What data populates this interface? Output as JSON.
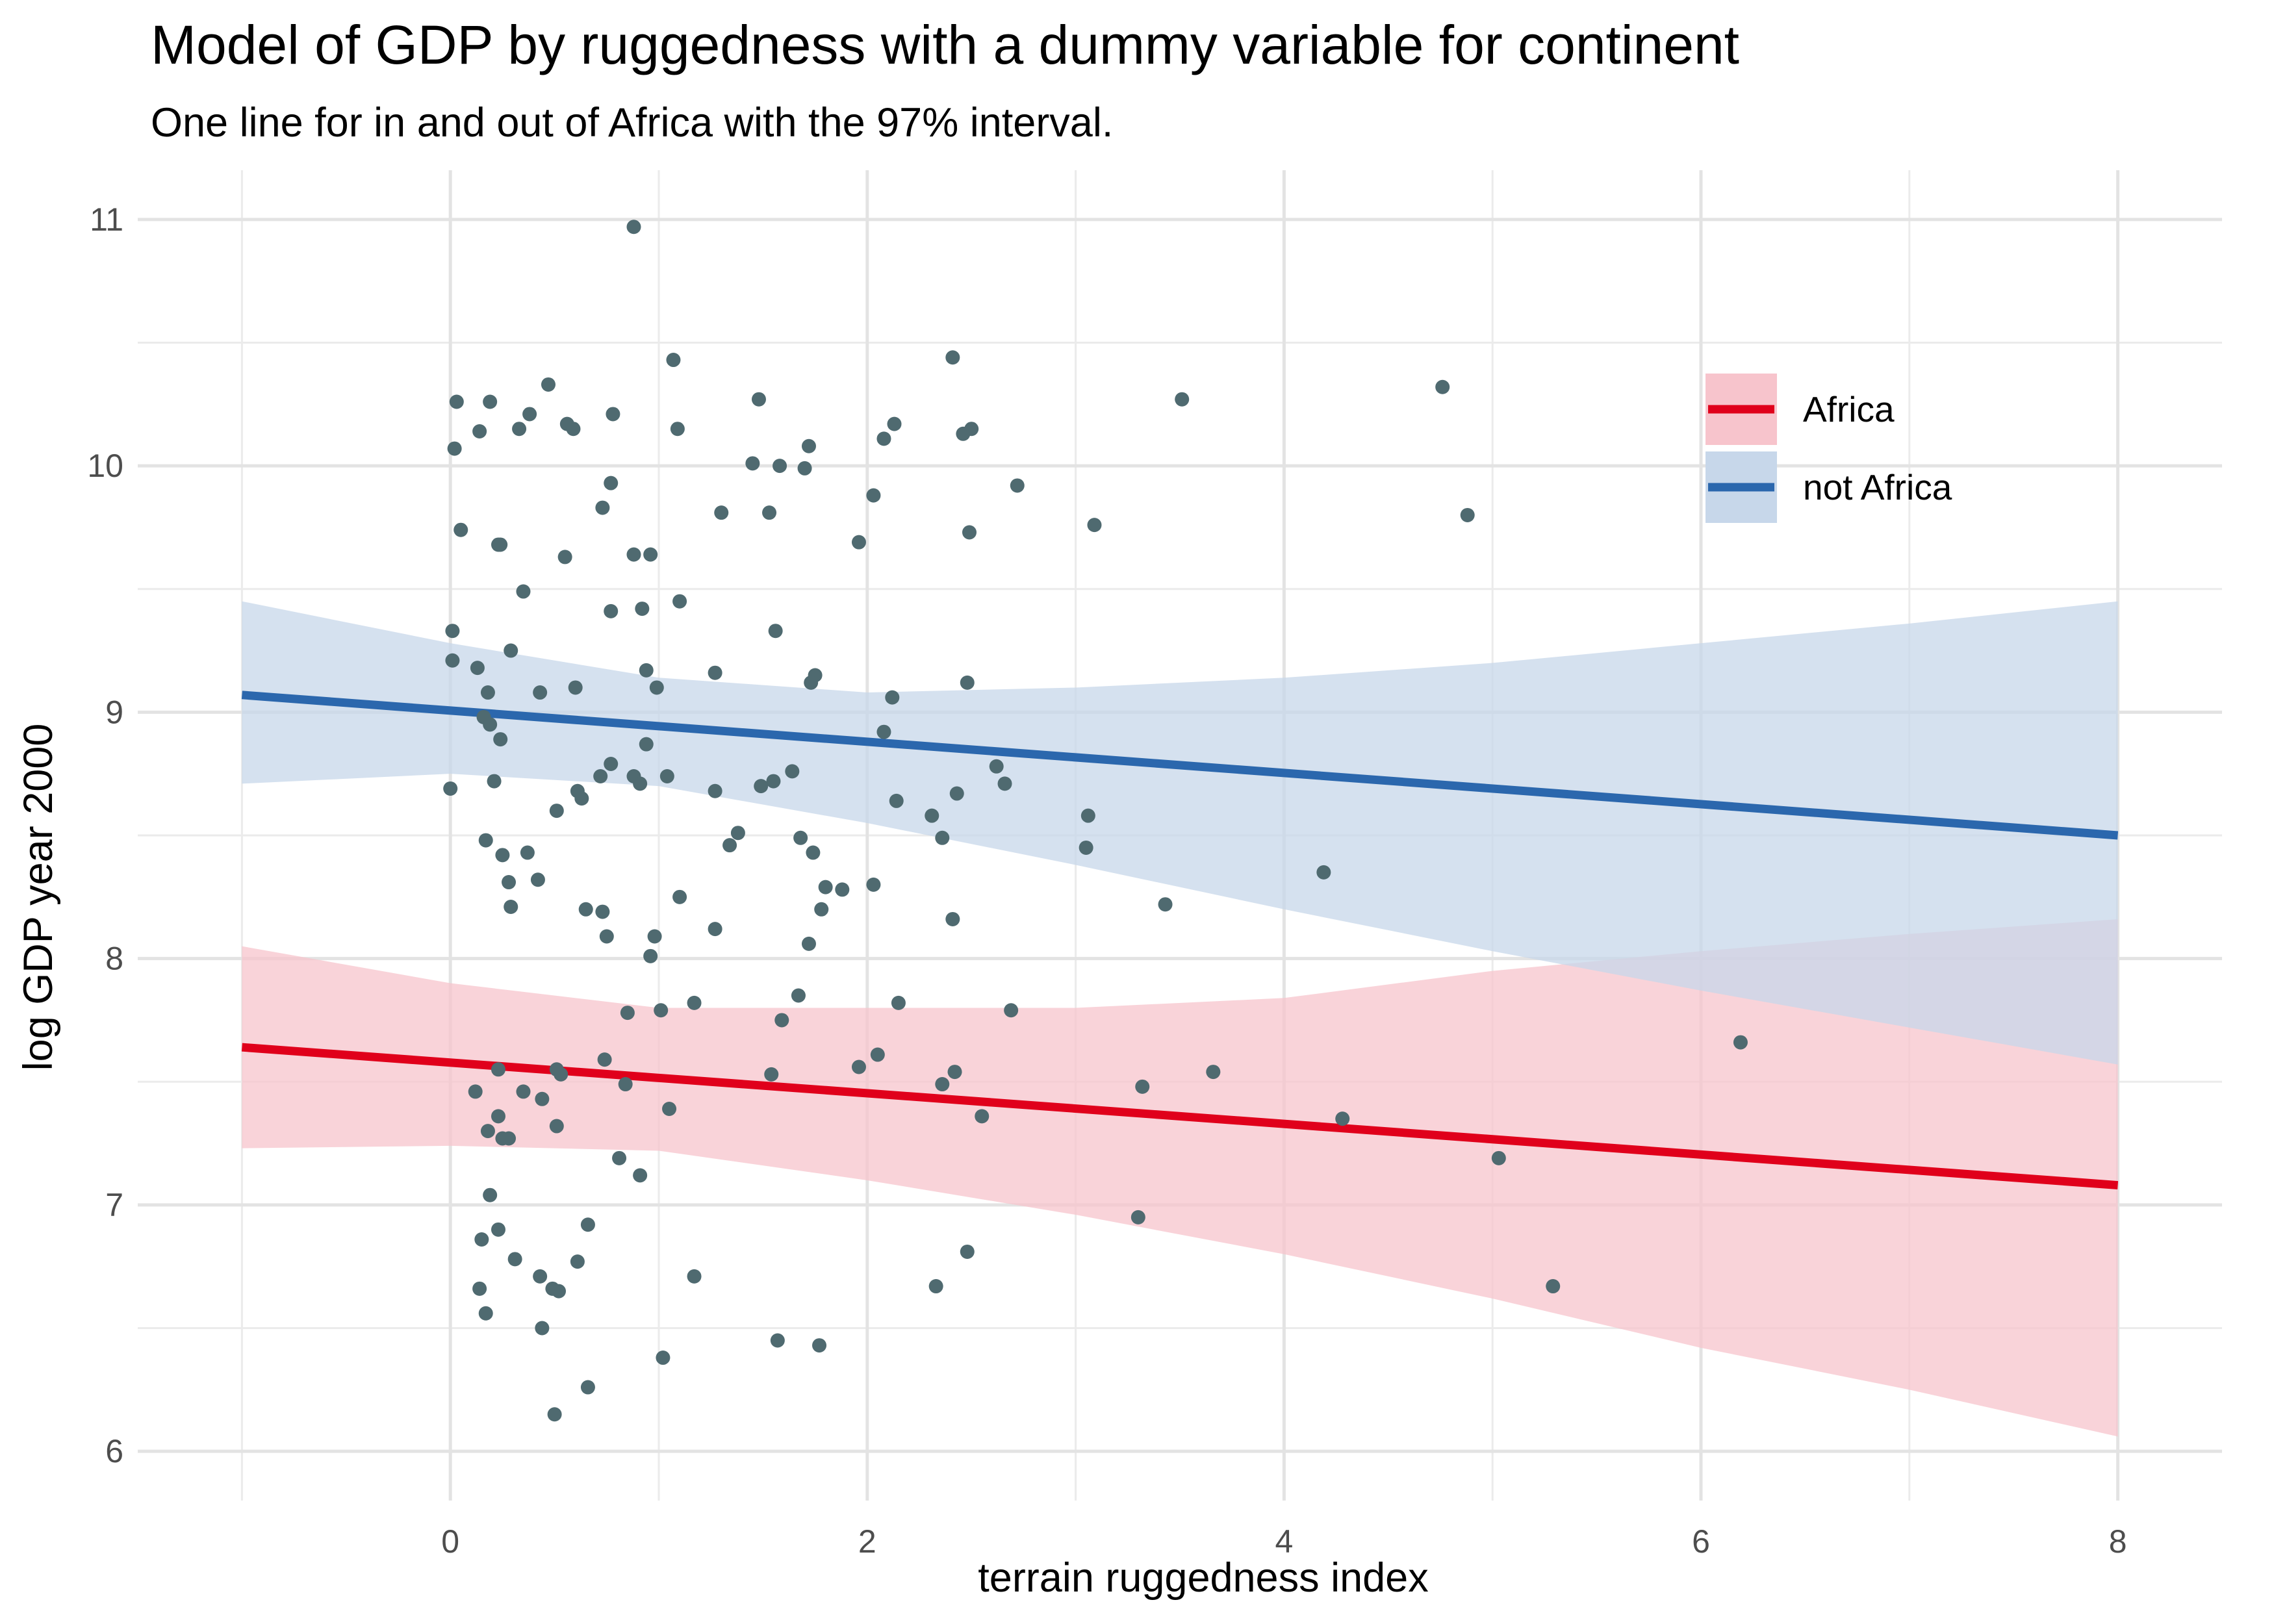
{
  "chart_data": {
    "type": "scatter",
    "title": "Model of GDP by ruggedness with a dummy variable for continent",
    "subtitle": "One line for in and out of Africa with the 97% interval.",
    "xlabel": "terrain ruggedness index",
    "ylabel": "log GDP year 2000",
    "xlim": [
      -1.5,
      8.5
    ],
    "ylim": [
      5.8,
      11.2
    ],
    "x_ticks": [
      0,
      2,
      4,
      6,
      8
    ],
    "y_ticks": [
      6,
      7,
      8,
      9,
      10,
      11
    ],
    "grid": true,
    "legend_position": "top-right",
    "point_color": "#4f6a70",
    "series": [
      {
        "name": "Africa",
        "color": "#e0001b",
        "fill": "#f7c4cc",
        "line": [
          [
            -1.0,
            7.64
          ],
          [
            8.0,
            7.08
          ]
        ],
        "interval_upper": [
          [
            -1.0,
            8.05
          ],
          [
            0.0,
            7.9
          ],
          [
            1.0,
            7.8
          ],
          [
            2.0,
            7.8
          ],
          [
            3.0,
            7.8
          ],
          [
            4.0,
            7.84
          ],
          [
            5.0,
            7.95
          ],
          [
            6.0,
            8.03
          ],
          [
            7.0,
            8.1
          ],
          [
            8.0,
            8.16
          ]
        ],
        "interval_lower": [
          [
            -1.0,
            7.23
          ],
          [
            0.0,
            7.24
          ],
          [
            1.0,
            7.22
          ],
          [
            2.0,
            7.1
          ],
          [
            3.0,
            6.96
          ],
          [
            4.0,
            6.8
          ],
          [
            5.0,
            6.62
          ],
          [
            6.0,
            6.42
          ],
          [
            7.0,
            6.25
          ],
          [
            8.0,
            6.06
          ]
        ]
      },
      {
        "name": "not Africa",
        "color": "#2b67ad",
        "fill": "#c7d7ea",
        "line": [
          [
            -1.0,
            9.07
          ],
          [
            8.0,
            8.5
          ]
        ],
        "interval_upper": [
          [
            -1.0,
            9.45
          ],
          [
            0.0,
            9.28
          ],
          [
            1.0,
            9.14
          ],
          [
            2.0,
            9.08
          ],
          [
            3.0,
            9.1
          ],
          [
            4.0,
            9.14
          ],
          [
            5.0,
            9.2
          ],
          [
            6.0,
            9.28
          ],
          [
            7.0,
            9.36
          ],
          [
            8.0,
            9.45
          ]
        ],
        "interval_lower": [
          [
            -1.0,
            8.71
          ],
          [
            0.0,
            8.75
          ],
          [
            1.0,
            8.7
          ],
          [
            2.0,
            8.55
          ],
          [
            3.0,
            8.38
          ],
          [
            4.0,
            8.2
          ],
          [
            5.0,
            8.03
          ],
          [
            6.0,
            7.87
          ],
          [
            7.0,
            7.72
          ],
          [
            8.0,
            7.57
          ]
        ]
      }
    ],
    "points": [
      [
        0.88,
        10.97
      ],
      [
        1.07,
        10.43
      ],
      [
        2.41,
        10.44
      ],
      [
        0.47,
        10.33
      ],
      [
        0.03,
        10.26
      ],
      [
        0.19,
        10.26
      ],
      [
        1.48,
        10.27
      ],
      [
        3.51,
        10.27
      ],
      [
        4.76,
        10.32
      ],
      [
        0.38,
        10.21
      ],
      [
        0.78,
        10.21
      ],
      [
        0.56,
        10.17
      ],
      [
        0.59,
        10.15
      ],
      [
        0.33,
        10.15
      ],
      [
        0.14,
        10.14
      ],
      [
        1.09,
        10.15
      ],
      [
        2.13,
        10.17
      ],
      [
        2.5,
        10.15
      ],
      [
        2.46,
        10.13
      ],
      [
        2.08,
        10.11
      ],
      [
        1.72,
        10.08
      ],
      [
        0.02,
        10.07
      ],
      [
        1.45,
        10.01
      ],
      [
        1.58,
        10.0
      ],
      [
        1.7,
        9.99
      ],
      [
        0.77,
        9.93
      ],
      [
        2.72,
        9.92
      ],
      [
        2.03,
        9.88
      ],
      [
        0.73,
        9.83
      ],
      [
        1.3,
        9.81
      ],
      [
        1.53,
        9.81
      ],
      [
        4.88,
        9.8
      ],
      [
        0.05,
        9.74
      ],
      [
        2.49,
        9.73
      ],
      [
        3.09,
        9.76
      ],
      [
        0.23,
        9.68
      ],
      [
        0.24,
        9.68
      ],
      [
        1.96,
        9.69
      ],
      [
        0.55,
        9.63
      ],
      [
        0.88,
        9.64
      ],
      [
        0.96,
        9.64
      ],
      [
        0.35,
        9.49
      ],
      [
        0.77,
        9.41
      ],
      [
        0.92,
        9.42
      ],
      [
        1.1,
        9.45
      ],
      [
        0.01,
        9.33
      ],
      [
        1.56,
        9.33
      ],
      [
        0.29,
        9.25
      ],
      [
        0.01,
        9.21
      ],
      [
        0.13,
        9.18
      ],
      [
        0.94,
        9.17
      ],
      [
        1.27,
        9.16
      ],
      [
        1.75,
        9.15
      ],
      [
        1.73,
        9.12
      ],
      [
        2.48,
        9.12
      ],
      [
        0.6,
        9.1
      ],
      [
        0.99,
        9.1
      ],
      [
        0.18,
        9.08
      ],
      [
        0.43,
        9.08
      ],
      [
        2.12,
        9.06
      ],
      [
        0.16,
        8.98
      ],
      [
        0.19,
        8.95
      ],
      [
        2.08,
        8.92
      ],
      [
        0.24,
        8.89
      ],
      [
        0.94,
        8.87
      ],
      [
        0.77,
        8.79
      ],
      [
        1.64,
        8.76
      ],
      [
        2.62,
        8.78
      ],
      [
        0.88,
        8.74
      ],
      [
        0.72,
        8.74
      ],
      [
        1.04,
        8.74
      ],
      [
        0.21,
        8.72
      ],
      [
        1.55,
        8.72
      ],
      [
        0.91,
        8.71
      ],
      [
        2.66,
        8.71
      ],
      [
        1.49,
        8.7
      ],
      [
        0.0,
        8.69
      ],
      [
        1.27,
        8.68
      ],
      [
        0.61,
        8.68
      ],
      [
        0.63,
        8.65
      ],
      [
        2.43,
        8.67
      ],
      [
        2.14,
        8.64
      ],
      [
        0.51,
        8.6
      ],
      [
        2.31,
        8.58
      ],
      [
        3.06,
        8.58
      ],
      [
        1.38,
        8.51
      ],
      [
        0.17,
        8.48
      ],
      [
        1.68,
        8.49
      ],
      [
        2.36,
        8.49
      ],
      [
        1.34,
        8.46
      ],
      [
        3.05,
        8.45
      ],
      [
        0.25,
        8.42
      ],
      [
        0.37,
        8.43
      ],
      [
        1.74,
        8.43
      ],
      [
        4.19,
        8.35
      ],
      [
        0.28,
        8.31
      ],
      [
        0.42,
        8.32
      ],
      [
        1.8,
        8.29
      ],
      [
        1.88,
        8.28
      ],
      [
        2.03,
        8.3
      ],
      [
        1.1,
        8.25
      ],
      [
        0.29,
        8.21
      ],
      [
        0.65,
        8.2
      ],
      [
        0.73,
        8.19
      ],
      [
        1.78,
        8.2
      ],
      [
        3.43,
        8.22
      ],
      [
        2.41,
        8.16
      ],
      [
        1.27,
        8.12
      ],
      [
        0.98,
        8.09
      ],
      [
        0.75,
        8.09
      ],
      [
        1.72,
        8.06
      ],
      [
        0.96,
        8.01
      ],
      [
        1.67,
        7.85
      ],
      [
        1.17,
        7.82
      ],
      [
        2.15,
        7.82
      ],
      [
        0.85,
        7.78
      ],
      [
        1.01,
        7.79
      ],
      [
        2.69,
        7.79
      ],
      [
        1.59,
        7.75
      ],
      [
        6.19,
        7.66
      ],
      [
        2.05,
        7.61
      ],
      [
        0.74,
        7.59
      ],
      [
        1.96,
        7.56
      ],
      [
        0.23,
        7.55
      ],
      [
        0.51,
        7.55
      ],
      [
        0.53,
        7.53
      ],
      [
        2.42,
        7.54
      ],
      [
        3.66,
        7.54
      ],
      [
        1.54,
        7.53
      ],
      [
        0.84,
        7.49
      ],
      [
        2.36,
        7.49
      ],
      [
        3.32,
        7.48
      ],
      [
        0.12,
        7.46
      ],
      [
        0.35,
        7.46
      ],
      [
        0.44,
        7.43
      ],
      [
        1.05,
        7.39
      ],
      [
        0.23,
        7.36
      ],
      [
        2.55,
        7.36
      ],
      [
        4.28,
        7.35
      ],
      [
        0.51,
        7.32
      ],
      [
        0.18,
        7.3
      ],
      [
        0.25,
        7.27
      ],
      [
        0.28,
        7.27
      ],
      [
        5.03,
        7.19
      ],
      [
        0.81,
        7.19
      ],
      [
        0.91,
        7.12
      ],
      [
        0.19,
        7.04
      ],
      [
        3.3,
        6.95
      ],
      [
        0.66,
        6.92
      ],
      [
        0.23,
        6.9
      ],
      [
        0.15,
        6.86
      ],
      [
        0.31,
        6.78
      ],
      [
        0.61,
        6.77
      ],
      [
        2.48,
        6.81
      ],
      [
        1.17,
        6.71
      ],
      [
        0.43,
        6.71
      ],
      [
        0.49,
        6.66
      ],
      [
        0.52,
        6.65
      ],
      [
        0.14,
        6.66
      ],
      [
        2.33,
        6.67
      ],
      [
        5.29,
        6.67
      ],
      [
        0.17,
        6.56
      ],
      [
        0.44,
        6.5
      ],
      [
        1.57,
        6.45
      ],
      [
        1.77,
        6.43
      ],
      [
        1.02,
        6.38
      ],
      [
        0.66,
        6.26
      ],
      [
        0.5,
        6.15
      ]
    ]
  }
}
